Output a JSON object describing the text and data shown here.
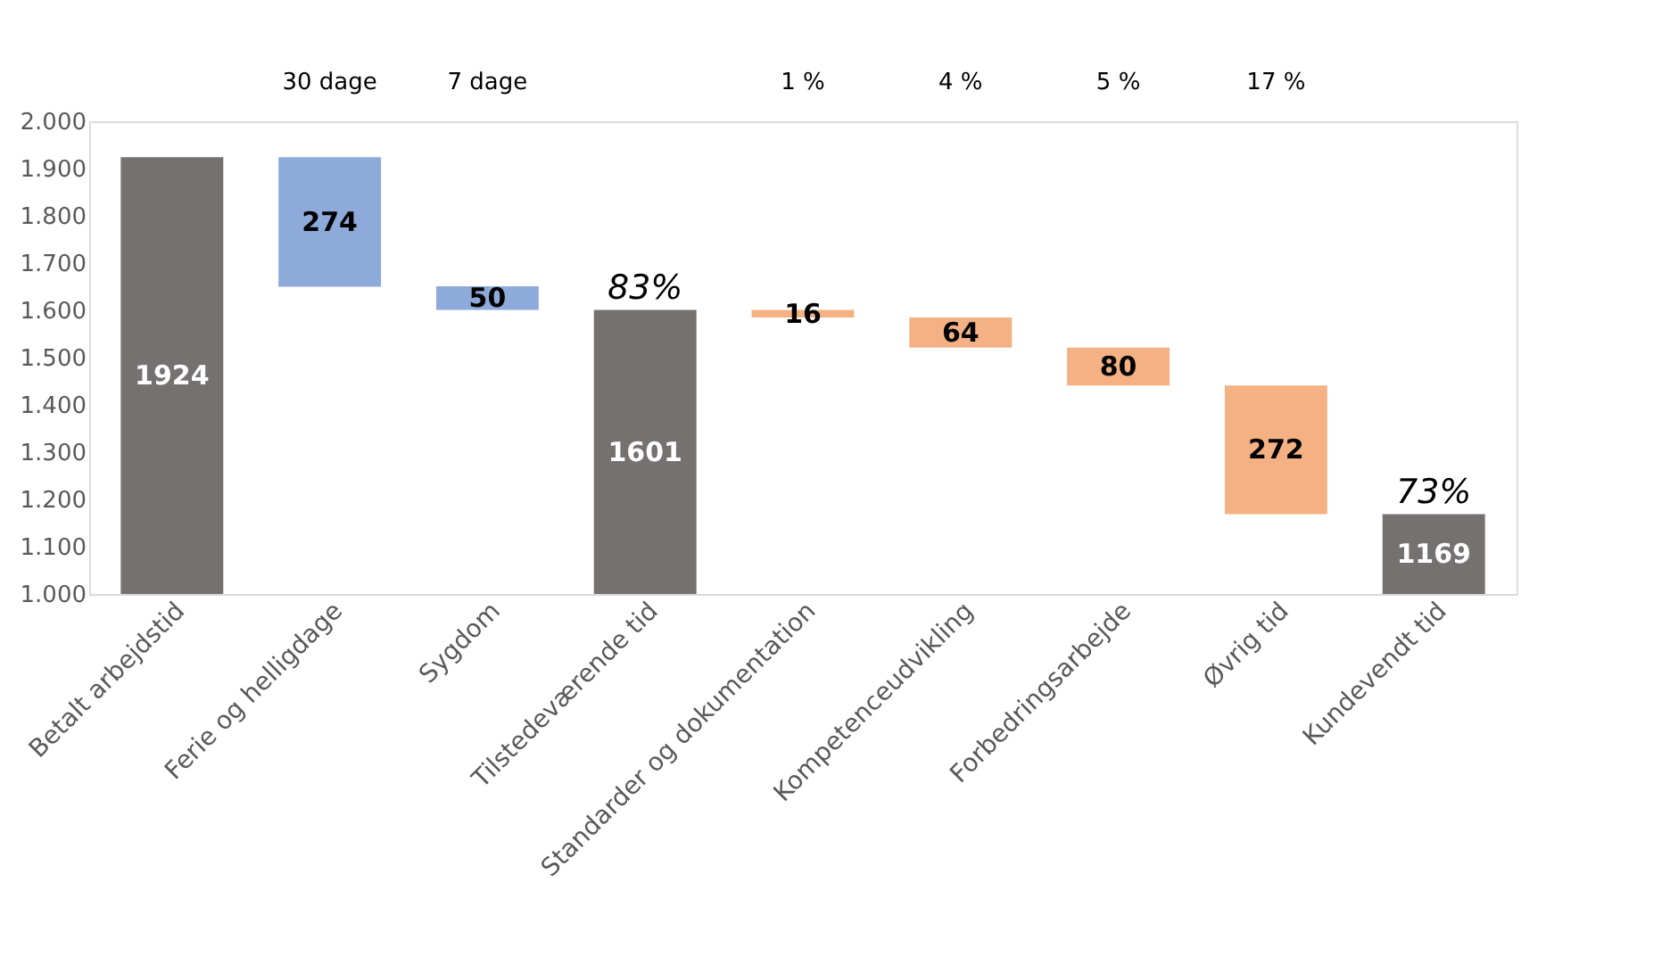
{
  "chart_data": {
    "type": "bar",
    "categories": [
      "Betalt arbejdstid",
      "Ferie og helligdage",
      "Sygdom",
      "Tilstedeværende tid",
      "Standarder og dokumentation",
      "Kompetenceudvikling",
      "Forbedringsarbejde",
      "Øvrig tid",
      "Kundevendt tid"
    ],
    "values": [
      1924,
      274,
      50,
      1601,
      16,
      64,
      80,
      272,
      1169
    ],
    "base": [
      0,
      1650,
      1601,
      0,
      1585,
      1521,
      1441,
      1169,
      0
    ],
    "colors": [
      "#767171",
      "#8eaadb",
      "#8eaadb",
      "#767171",
      "#f4b183",
      "#f4b183",
      "#f4b183",
      "#f4b183",
      "#767171"
    ],
    "data_labels": true,
    "ylim": [
      1000,
      2000
    ],
    "yticks": [
      {
        "value": 1000,
        "label": "1.000"
      },
      {
        "value": 1100,
        "label": "1.100"
      },
      {
        "value": 1200,
        "label": "1.200"
      },
      {
        "value": 1300,
        "label": "1.300"
      },
      {
        "value": 1400,
        "label": "1.400"
      },
      {
        "value": 1500,
        "label": "1.500"
      },
      {
        "value": 1600,
        "label": "1.600"
      },
      {
        "value": 1700,
        "label": "1.700"
      },
      {
        "value": 1800,
        "label": "1.800"
      },
      {
        "value": 1900,
        "label": "1.900"
      },
      {
        "value": 2000,
        "label": "2.000"
      }
    ],
    "grid": false,
    "legend": false,
    "annotations": [
      "30 dage",
      "7 dage",
      "1 %",
      "4 %",
      "5 %",
      "17 %",
      {
        "text": "83%",
        "x": "Tilstedeværende tid",
        "y": 1601
      },
      {
        "text": "73%",
        "x": "Kundevendt tid",
        "y": 1169
      }
    ]
  }
}
